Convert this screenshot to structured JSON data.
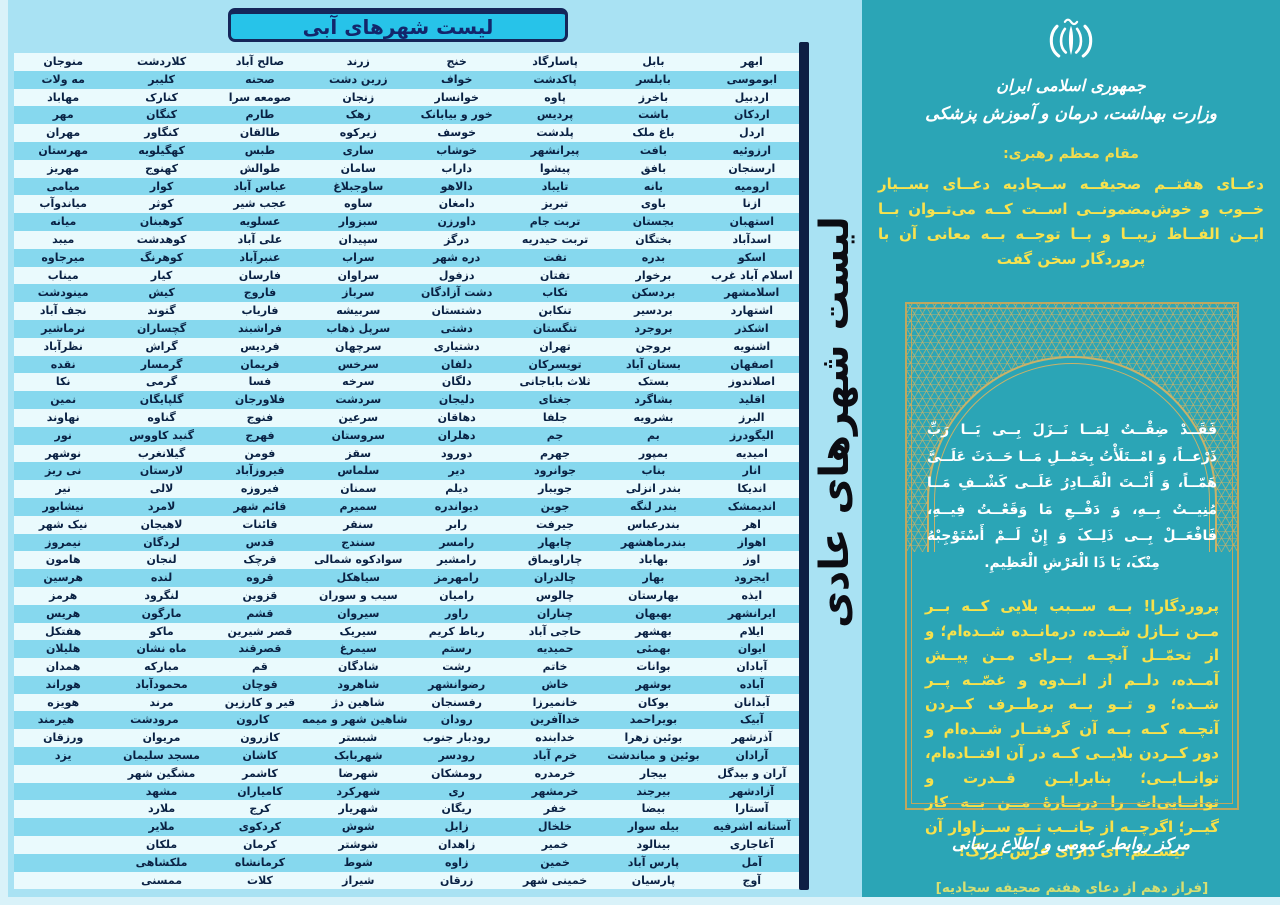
{
  "header": {
    "title": "لیست شهرهای آبی"
  },
  "side_title": "لیست شهرهای عادی",
  "colors": {
    "page_bg": "#d9f2f9",
    "left_bg": "#a9e2f3",
    "stripe_light": "#eafafd",
    "stripe_cyan": "#86d8ee",
    "header_fill": "#27c3e9",
    "navy": "#0d1f44",
    "teal_panel": "#2ba5b6",
    "gold": "#c9b269",
    "yellow_text": "#f8e24e",
    "white_text": "#ffffff"
  },
  "table": {
    "row_count": 47,
    "columns": [
      [
        "ابهر",
        "ابوموسی",
        "اردبیل",
        "اردکان",
        "اردل",
        "ارزوئیه",
        "ارسنجان",
        "ارومیه",
        "ازنا",
        "استهبان",
        "اسدآباد",
        "اسکو",
        "اسلام آباد غرب",
        "اسلامشهر",
        "اشتهارد",
        "اشکذر",
        "اشنویه",
        "اصفهان",
        "اصلاندوز",
        "اقلید",
        "البرز",
        "الیگودرز",
        "امیدیه",
        "انار",
        "اندیکا",
        "اندیمشک",
        "اهر",
        "اهواز",
        "اوز",
        "ایجرود",
        "ایذه",
        "ایرانشهر",
        "ایلام",
        "ایوان",
        "آبادان",
        "آباده",
        "آبدانان",
        "آبیک",
        "آذرشهر",
        "آرادان",
        "آران و بیدگل",
        "آزادشهر",
        "آستارا",
        "آستانه اشرفیه",
        "آغاجاری",
        "آمل",
        "آوج"
      ],
      [
        "بابل",
        "بابلسر",
        "باخرز",
        "باشت",
        "باغ ملک",
        "بافت",
        "بافق",
        "بانه",
        "باوی",
        "بجستان",
        "بختگان",
        "بدره",
        "برخوار",
        "بردسکن",
        "بردسیر",
        "بروجرد",
        "بروجن",
        "بستان آباد",
        "بستک",
        "بشاگرد",
        "بشرویه",
        "بم",
        "بمپور",
        "بناب",
        "بندر انزلی",
        "بندر لنگه",
        "بندرعباس",
        "بندرماهشهر",
        "بهاباد",
        "بهار",
        "بهارستان",
        "بهبهان",
        "بهشهر",
        "بهمئی",
        "بوانات",
        "بوشهر",
        "بوکان",
        "بویراحمد",
        "بوئین زهرا",
        "بوئین و میاندشت",
        "بیجار",
        "بیرجند",
        "بیضا",
        "بیله سوار",
        "بینالود",
        "پارس آباد",
        "پارسیان"
      ],
      [
        "پاسارگاد",
        "پاکدشت",
        "پاوه",
        "پردیس",
        "پلدشت",
        "پیرانشهر",
        "پیشوا",
        "تایباد",
        "تبریز",
        "تربت جام",
        "تربت حیدریه",
        "تفت",
        "تفتان",
        "تکاب",
        "تنکابن",
        "تنگستان",
        "تهران",
        "تویسرکان",
        "ثلاث باباجانی",
        "جغتای",
        "جلفا",
        "جم",
        "جهرم",
        "جوانرود",
        "جویبار",
        "جوین",
        "جیرفت",
        "چابهار",
        "چاراویماق",
        "چالدران",
        "چالوس",
        "چناران",
        "حاجی آباد",
        "حمیدیه",
        "خاتم",
        "خاش",
        "خانمیرزا",
        "خداآفرین",
        "خدابنده",
        "خرم آباد",
        "خرمدره",
        "خرمشهر",
        "خفر",
        "خلخال",
        "خمیر",
        "خمین",
        "خمینی شهر"
      ],
      [
        "خنج",
        "خواف",
        "خوانسار",
        "خور و بیابانک",
        "خوسف",
        "خوشاب",
        "داراب",
        "دالاهو",
        "دامغان",
        "داورزن",
        "درگز",
        "دره شهر",
        "دزفول",
        "دشت آزادگان",
        "دشتستان",
        "دشتی",
        "دشتیاری",
        "دلفان",
        "دلگان",
        "دلیجان",
        "دهاقان",
        "دهلران",
        "دورود",
        "دیر",
        "دیلم",
        "دیواندره",
        "رابر",
        "رامسر",
        "رامشیر",
        "رامهرمز",
        "رامیان",
        "راور",
        "رباط کریم",
        "رستم",
        "رشت",
        "رضوانشهر",
        "رفسنجان",
        "رودان",
        "رودبار جنوب",
        "رودسر",
        "رومشکان",
        "ری",
        "ریگان",
        "زابل",
        "زاهدان",
        "زاوه",
        "زرقان"
      ],
      [
        "زرند",
        "زرین دشت",
        "زنجان",
        "زهک",
        "زیرکوه",
        "ساری",
        "سامان",
        "ساوجبلاغ",
        "ساوه",
        "سبزوار",
        "سپیدان",
        "سراب",
        "سراوان",
        "سرباز",
        "سربیشه",
        "سرپل ذهاب",
        "سرچهان",
        "سرخس",
        "سرخه",
        "سردشت",
        "سرعین",
        "سروستان",
        "سقز",
        "سلماس",
        "سمنان",
        "سمیرم",
        "سنقر",
        "سنندج",
        "سوادکوه شمالی",
        "سیاهکل",
        "سیب و سوران",
        "سیروان",
        "سیریک",
        "سیمرغ",
        "شادگان",
        "شاهرود",
        "شاهین دژ",
        "شاهین شهر و میمه",
        "شبستر",
        "شهربابک",
        "شهرضا",
        "شهرکرد",
        "شهریار",
        "شوش",
        "شوشتر",
        "شوط",
        "شیراز"
      ],
      [
        "صالح آباد",
        "صحنه",
        "صومعه سرا",
        "طارم",
        "طالقان",
        "طبس",
        "طوالش",
        "عباس آباد",
        "عجب شیر",
        "عسلویه",
        "علی آباد",
        "عنبرآباد",
        "فارسان",
        "فاروج",
        "فاریاب",
        "فراشبند",
        "فردیس",
        "فریمان",
        "فسا",
        "فلاورجان",
        "فنوج",
        "فهرج",
        "فومن",
        "فیروزآباد",
        "فیروزه",
        "قائم شهر",
        "قائنات",
        "قدس",
        "قرچک",
        "قروه",
        "قزوین",
        "قشم",
        "قصر شیرین",
        "قصرقند",
        "قم",
        "قوچان",
        "قیر و کارزین",
        "کارون",
        "کازرون",
        "کاشان",
        "کاشمر",
        "کامیاران",
        "کرج",
        "کردکوی",
        "کرمان",
        "کرمانشاه",
        "کلات"
      ],
      [
        "کلاردشت",
        "کلیبر",
        "کنارک",
        "کنگان",
        "کنگاور",
        "کهگیلویه",
        "کهنوج",
        "کوار",
        "کوثر",
        "کوهبنان",
        "کوهدشت",
        "کوهرنگ",
        "کیار",
        "کیش",
        "گتوند",
        "گچساران",
        "گراش",
        "گرمسار",
        "گرمی",
        "گلپایگان",
        "گناوه",
        "گنبد کاووس",
        "گیلانغرب",
        "لارستان",
        "لالی",
        "لامرد",
        "لاهیجان",
        "لردگان",
        "لنجان",
        "لنده",
        "لنگرود",
        "مارگون",
        "ماکو",
        "ماه نشان",
        "مبارکه",
        "محمودآباد",
        "مرند",
        "مرودشت",
        "مریوان",
        "مسجد سلیمان",
        "مشگین شهر",
        "مشهد",
        "ملارد",
        "ملایر",
        "ملکان",
        "ملکشاهی",
        "ممسنی"
      ],
      [
        "منوجان",
        "مه ولات",
        "مهاباد",
        "مهر",
        "مهران",
        "مهرستان",
        "مهریز",
        "میامی",
        "میاندوآب",
        "میانه",
        "میبد",
        "میرجاوه",
        "میناب",
        "مینودشت",
        "نجف آباد",
        "نرماشیر",
        "نظرآباد",
        "نقده",
        "نکا",
        "نمین",
        "نهاوند",
        "نور",
        "نوشهر",
        "نی ریز",
        "نیر",
        "نیشابور",
        "نیک شهر",
        "نیمروز",
        "هامون",
        "هرسین",
        "هرمز",
        "هریس",
        "هفتکل",
        "هلیلان",
        "همدان",
        "هوراند",
        "هویزه",
        "هیرمند",
        "ورزقان",
        "یزد",
        "",
        "",
        "",
        "",
        "",
        "",
        ""
      ]
    ]
  },
  "panel": {
    "emblem_icon": "iran-emblem",
    "gov_line1": "جمهوری اسلامی ایران",
    "gov_line2": "وزارت بهداشت، درمان و آموزش پزشکی",
    "leader_label": "مقام معظم رهبری:",
    "leader_quote": "دعــای هفتــم صحیفــه ســجادیه دعــای بســیار خــوب و خوش‌مضمونــی اســت کــه می‌تــوان بــا ایــن الفــاظ زیبــا و بــا توجــه بــه معانی آن با پروردگار سخن گفت",
    "arabic_prayer": "فَقَــدْ ضِقْــتُ لِمَــا نَــزَلَ بِــی یَــا رَبِّ ذَرْعــاً، وَ امْــتَلَأْتُ بِحَمْــلِ مَــا حَــدَثَ عَلَــیَّ هَمّــاً، وَ أَنْــتَ الْقَــادِرُ عَلَــی کَشْــفِ مَــا مُنِیــتُ بِــهِ، وَ دَفْــعِ مَا وَقَعْــتُ فِیــهِ، فَافْعَــلْ بِــی ذَلِــکَ وَ إِنْ لَــمْ أَسْتَوْجِبْهُ مِنْکَ، یَا ذَا الْعَرْشِ الْعَظِیمِ.",
    "translation": "پروردگارا! بــه ســبب بلایی کــه بــر مــن نــازل شــده، درمانــده شــده‌ام؛ و از تحمّــل آنچــه بــرای مــن پیــش آمــده، دلــم از انــدوه و غصّــه پــر شــده؛ و تــو بــه برطــرف کــردن آنچــه کــه بــه آن گرفتــار شــده‌ام و دور کــردن بلایــی کــه در آن افتــاده‌ام، توانــایــی؛ بنابرایــن قــدرت و توانــایی‌ات را دربــارهٔ مــن بــه کار گیــر؛ اگرچــه از جانــب تــو ســزاوار آن نیســتم؛ ای دارای عرش بزرگ!",
    "citation": "[فراز دهم از دعای هفتم صحیفه سجادیه]",
    "footer": "مرکز روابط عمومی و اطلاع رسانی"
  }
}
